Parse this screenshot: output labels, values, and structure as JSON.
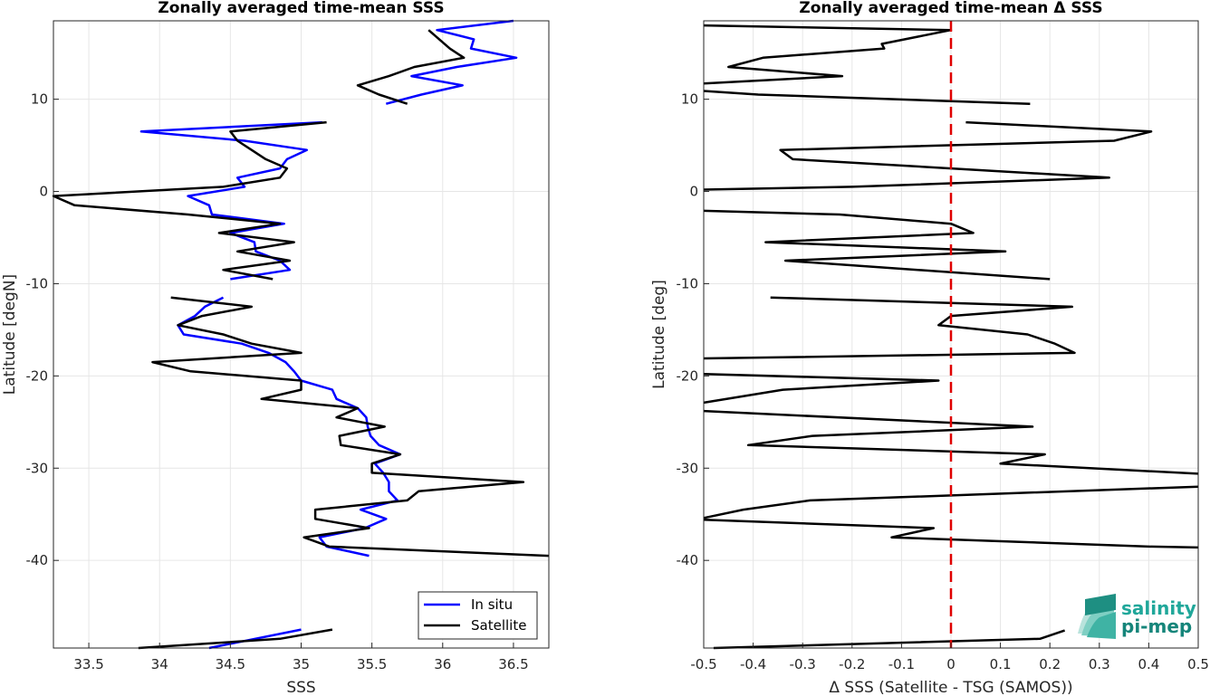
{
  "chart_data": [
    {
      "type": "line",
      "title": "Zonally averaged time-mean SSS",
      "xlabel": "SSS",
      "ylabel": "Latitude [degN]",
      "xlim": [
        33.25,
        36.75
      ],
      "ylim": [
        -49.5,
        18.5
      ],
      "grid": true,
      "x_ticks": [
        "33.5",
        "34",
        "34.5",
        "35",
        "35.5",
        "36",
        "36.5"
      ],
      "y_ticks": [
        "10",
        "0",
        "-10",
        "-20",
        "-30",
        "-40"
      ],
      "legend": {
        "position": "bottom-right"
      },
      "series": [
        {
          "name": "In situ",
          "color": "#0000ff",
          "segments": [
            [
              [
                36.5,
                18.5
              ],
              [
                35.96,
                17.5
              ],
              [
                36.22,
                16.5
              ],
              [
                36.2,
                15.5
              ],
              [
                36.52,
                14.5
              ],
              [
                36.1,
                13.5
              ],
              [
                35.78,
                12.5
              ],
              [
                36.14,
                11.5
              ],
              [
                35.85,
                10.5
              ],
              [
                35.6,
                9.5
              ]
            ],
            [
              [
                35.15,
                7.5
              ],
              [
                33.87,
                6.5
              ],
              [
                34.6,
                5.5
              ],
              [
                35.04,
                4.5
              ],
              [
                34.9,
                3.5
              ],
              [
                34.85,
                2.5
              ],
              [
                34.55,
                1.5
              ],
              [
                34.6,
                0.5
              ],
              [
                34.2,
                -0.5
              ],
              [
                34.35,
                -1.5
              ],
              [
                34.37,
                -2.5
              ],
              [
                34.88,
                -3.5
              ],
              [
                34.5,
                -4.5
              ],
              [
                34.67,
                -5.5
              ],
              [
                34.68,
                -6.5
              ],
              [
                34.85,
                -7.5
              ],
              [
                34.92,
                -8.5
              ],
              [
                34.5,
                -9.5
              ]
            ],
            [
              [
                34.45,
                -11.5
              ],
              [
                34.32,
                -12.5
              ],
              [
                34.25,
                -13.5
              ],
              [
                34.13,
                -14.5
              ],
              [
                34.17,
                -15.5
              ],
              [
                34.58,
                -16.5
              ],
              [
                34.77,
                -17.5
              ],
              [
                34.89,
                -18.5
              ],
              [
                34.95,
                -19.5
              ],
              [
                35.0,
                -20.5
              ],
              [
                35.22,
                -21.5
              ],
              [
                35.25,
                -22.5
              ],
              [
                35.4,
                -23.5
              ],
              [
                35.46,
                -24.5
              ],
              [
                35.47,
                -25.5
              ],
              [
                35.49,
                -26.5
              ],
              [
                35.55,
                -27.5
              ],
              [
                35.7,
                -28.5
              ],
              [
                35.52,
                -29.5
              ],
              [
                35.58,
                -30.5
              ],
              [
                35.62,
                -31.5
              ],
              [
                35.62,
                -32.5
              ],
              [
                35.68,
                -33.5
              ],
              [
                35.42,
                -34.5
              ],
              [
                35.6,
                -35.5
              ],
              [
                35.45,
                -36.5
              ],
              [
                35.13,
                -37.5
              ],
              [
                35.18,
                -38.5
              ],
              [
                35.48,
                -39.5
              ]
            ],
            [
              [
                35.0,
                -47.5
              ],
              [
                34.35,
                -49.5
              ]
            ]
          ]
        },
        {
          "name": "Satellite",
          "color": "#000000",
          "segments": [
            [
              [
                35.9,
                17.5
              ],
              [
                36.05,
                15.5
              ],
              [
                36.15,
                14.5
              ],
              [
                35.8,
                13.5
              ],
              [
                35.62,
                12.5
              ],
              [
                35.4,
                11.5
              ],
              [
                35.55,
                10.5
              ],
              [
                35.75,
                9.5
              ]
            ],
            [
              [
                35.18,
                7.5
              ],
              [
                34.5,
                6.5
              ],
              [
                34.55,
                5.5
              ],
              [
                34.65,
                4.5
              ],
              [
                34.75,
                3.5
              ],
              [
                34.9,
                2.5
              ],
              [
                34.85,
                1.5
              ],
              [
                34.45,
                0.5
              ],
              [
                33.25,
                -0.5
              ],
              [
                33.4,
                -1.5
              ],
              [
                34.2,
                -2.5
              ],
              [
                34.85,
                -3.5
              ],
              [
                34.42,
                -4.5
              ],
              [
                34.95,
                -5.5
              ],
              [
                34.55,
                -6.5
              ],
              [
                34.92,
                -7.5
              ],
              [
                34.45,
                -8.5
              ],
              [
                34.8,
                -9.5
              ]
            ],
            [
              [
                34.08,
                -11.5
              ],
              [
                34.65,
                -12.5
              ],
              [
                34.3,
                -13.5
              ],
              [
                34.13,
                -14.5
              ],
              [
                34.45,
                -15.5
              ],
              [
                34.65,
                -16.5
              ],
              [
                35.0,
                -17.5
              ],
              [
                33.95,
                -18.5
              ],
              [
                34.22,
                -19.5
              ],
              [
                35.0,
                -20.5
              ],
              [
                35.0,
                -21.5
              ],
              [
                34.72,
                -22.5
              ],
              [
                35.4,
                -23.5
              ],
              [
                35.25,
                -24.5
              ],
              [
                35.59,
                -25.5
              ],
              [
                35.27,
                -26.5
              ],
              [
                35.28,
                -27.5
              ],
              [
                35.7,
                -28.5
              ],
              [
                35.5,
                -29.5
              ],
              [
                35.5,
                -30.5
              ],
              [
                36.57,
                -31.5
              ],
              [
                35.83,
                -32.5
              ],
              [
                35.75,
                -33.5
              ],
              [
                35.1,
                -34.5
              ],
              [
                35.1,
                -35.5
              ],
              [
                35.48,
                -36.5
              ],
              [
                35.02,
                -37.5
              ],
              [
                35.2,
                -38.5
              ],
              [
                36.75,
                -39.5
              ]
            ],
            [
              [
                35.22,
                -47.5
              ],
              [
                34.85,
                -48.5
              ],
              [
                33.85,
                -49.5
              ]
            ]
          ]
        }
      ]
    },
    {
      "type": "line",
      "title": "Zonally averaged time-mean Δ SSS",
      "xlabel": "Δ SSS (Satellite - TSG (SAMOS))",
      "ylabel": "Latitude [deg]",
      "xlim": [
        -0.5,
        0.5
      ],
      "ylim": [
        -49.5,
        18.5
      ],
      "grid": true,
      "x_ticks": [
        "-0.5",
        "-0.4",
        "-0.3",
        "-0.2",
        "-0.1",
        "0",
        "0.1",
        "0.2",
        "0.3",
        "0.4",
        "0.5"
      ],
      "y_ticks": [
        "10",
        "0",
        "-10",
        "-20",
        "-30",
        "-40"
      ],
      "reference_line": {
        "x": 0,
        "color": "#e00000",
        "style": "dashed"
      },
      "series": [
        {
          "color": "#000000",
          "segments": [
            [
              [
                -0.5,
                18
              ],
              [
                0.0,
                17.5
              ],
              [
                -0.14,
                16
              ],
              [
                -0.135,
                15.5
              ],
              [
                -0.38,
                14.5
              ],
              [
                -0.45,
                13.5
              ],
              [
                -0.22,
                12.5
              ],
              [
                -0.5,
                11.7
              ]
            ],
            [
              [
                -0.5,
                10.9
              ],
              [
                -0.39,
                10.5
              ],
              [
                0.16,
                9.5
              ]
            ],
            [
              [
                0.03,
                7.5
              ],
              [
                0.405,
                6.5
              ],
              [
                0.33,
                5.5
              ],
              [
                -0.345,
                4.5
              ],
              [
                -0.32,
                3.5
              ],
              [
                0.32,
                1.5
              ],
              [
                -0.2,
                0.5
              ],
              [
                -0.5,
                0.2
              ]
            ],
            [
              [
                -0.5,
                -2.1
              ],
              [
                -0.225,
                -2.5
              ],
              [
                0.0,
                -3.5
              ],
              [
                0.045,
                -4.5
              ],
              [
                -0.375,
                -5.5
              ],
              [
                0.11,
                -6.5
              ],
              [
                -0.335,
                -7.5
              ],
              [
                0.2,
                -9.5
              ]
            ],
            [
              [
                -0.365,
                -11.5
              ],
              [
                0.245,
                -12.5
              ],
              [
                0.0,
                -13.5
              ],
              [
                -0.025,
                -14.5
              ],
              [
                0.155,
                -15.5
              ],
              [
                0.21,
                -16.5
              ],
              [
                0.25,
                -17.5
              ],
              [
                -0.5,
                -18.1
              ]
            ],
            [
              [
                -0.5,
                -19.8
              ],
              [
                -0.025,
                -20.5
              ],
              [
                -0.34,
                -21.5
              ],
              [
                -0.5,
                -22.9
              ]
            ],
            [
              [
                -0.5,
                -23.8
              ],
              [
                0.165,
                -25.5
              ],
              [
                -0.28,
                -26.5
              ],
              [
                -0.41,
                -27.5
              ],
              [
                0.19,
                -28.5
              ],
              [
                0.1,
                -29.5
              ],
              [
                0.5,
                -30.6
              ]
            ],
            [
              [
                0.5,
                -32.0
              ],
              [
                -0.285,
                -33.5
              ],
              [
                -0.42,
                -34.5
              ],
              [
                -0.5,
                -35.4
              ]
            ],
            [
              [
                -0.5,
                -35.6
              ],
              [
                -0.035,
                -36.5
              ],
              [
                -0.12,
                -37.5
              ],
              [
                0.4,
                -38.5
              ],
              [
                0.5,
                -38.6
              ]
            ],
            [
              [
                0.23,
                -47.6
              ],
              [
                0.18,
                -48.5
              ],
              [
                -0.48,
                -49.5
              ]
            ]
          ]
        }
      ]
    }
  ],
  "logo": {
    "line1": "salinity",
    "line2": "pi-mep"
  }
}
